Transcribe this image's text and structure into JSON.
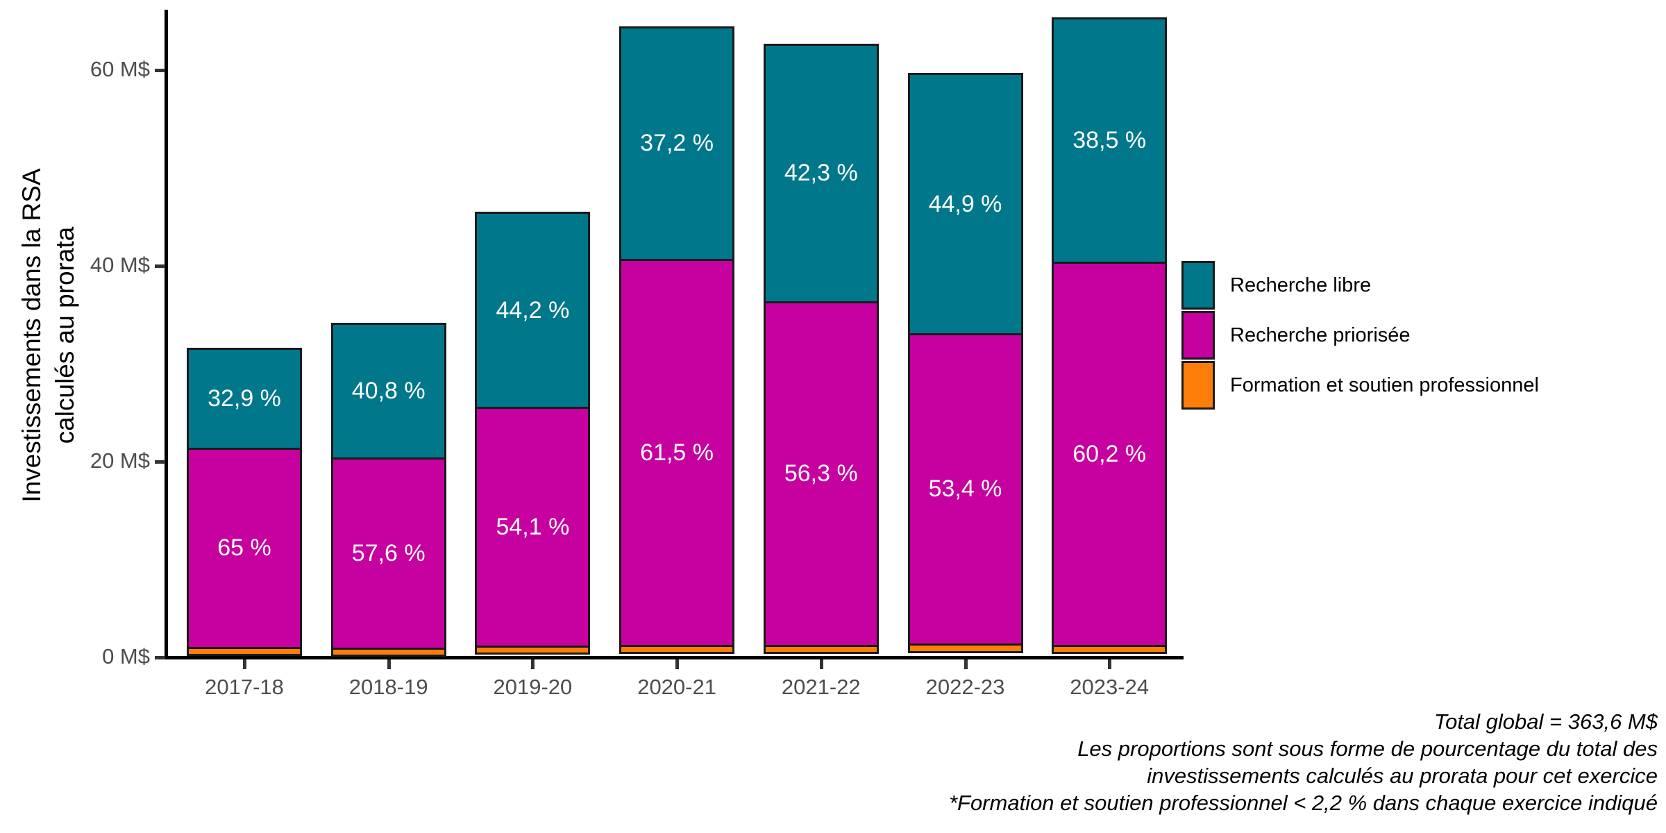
{
  "chart_data": {
    "type": "bar",
    "stacked": true,
    "grid": false,
    "legend_position": "right",
    "categories": [
      "2017-18",
      "2018-19",
      "2019-20",
      "2020-21",
      "2021-22",
      "2022-23",
      "2023-24"
    ],
    "totals_M": [
      31.6,
      34.2,
      45.5,
      64.5,
      62.7,
      59.7,
      65.4
    ],
    "y_axis": {
      "title_lines": [
        "Investissements dans la RSA",
        "calculés au prorata"
      ],
      "ticks": [
        {
          "value": 0,
          "label": "0 M$"
        },
        {
          "value": 20,
          "label": "20 M$"
        },
        {
          "value": 40,
          "label": "40 M$"
        },
        {
          "value": 60,
          "label": "60 M$"
        }
      ],
      "range": [
        0,
        66
      ]
    },
    "series": [
      {
        "name": "Recherche libre",
        "color": "#00778A",
        "percent": [
          32.9,
          40.8,
          44.2,
          37.2,
          42.3,
          44.9,
          38.5
        ],
        "values_M": [
          10.4,
          14.0,
          20.1,
          24.0,
          26.5,
          26.8,
          25.2
        ],
        "segment_labels": [
          "32,9 %",
          "40,8 %",
          "44,2 %",
          "37,2 %",
          "42,3 %",
          "44,9 %",
          "38,5 %"
        ]
      },
      {
        "name": "Recherche priorisée",
        "color": "#C700A0",
        "percent": [
          65,
          57.6,
          54.1,
          61.5,
          56.3,
          53.4,
          60.2
        ],
        "values_M": [
          20.5,
          19.7,
          24.6,
          39.7,
          35.3,
          31.9,
          39.4
        ],
        "segment_labels": [
          "65 %",
          "57,6 %",
          "54,1 %",
          "61,5 %",
          "56,3 %",
          "53,4 %",
          "60,2 %"
        ]
      },
      {
        "name": "Formation et soutien professionnel",
        "color": "#FC7E08",
        "percent": [
          2.1,
          1.6,
          1.7,
          1.3,
          1.4,
          1.7,
          1.3
        ],
        "values_M": [
          0.7,
          0.5,
          0.8,
          0.8,
          0.9,
          1.0,
          0.8
        ],
        "segment_labels": [
          "",
          "",
          "",
          "",
          "",
          "",
          ""
        ]
      }
    ]
  },
  "footnotes": {
    "lines": [
      "Total global = 363,6 M$",
      "Les proportions sont sous forme de pourcentage du total des",
      "investissements calculés au prorata pour cet exercice",
      "*Formation et soutien professionnel < 2,2 % dans chaque exercice indiqué"
    ]
  },
  "colors": {
    "axis_text": "#4D4D4D",
    "axis_line": "#000000",
    "segment_border": "#1A1A1A",
    "bar_label_text": "#FFFFFF"
  }
}
